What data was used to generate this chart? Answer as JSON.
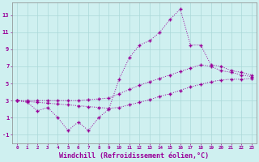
{
  "background_color": "#cff0f0",
  "grid_color": "#aad8d8",
  "line_color": "#990099",
  "marker": "+",
  "xlabel": "Windchill (Refroidissement éolien,°C)",
  "xlabel_fontsize": 6,
  "ylabel_ticks": [
    -1,
    1,
    3,
    5,
    7,
    9,
    11,
    13
  ],
  "xlim": [
    -0.5,
    23.5
  ],
  "ylim": [
    -2.0,
    14.5
  ],
  "series1_x": [
    0,
    1,
    2,
    3,
    4,
    5,
    6,
    7,
    8,
    9,
    10,
    11,
    12,
    13,
    14,
    15,
    16,
    17,
    18,
    19,
    20,
    21,
    22,
    23
  ],
  "series1_y": [
    3.0,
    2.9,
    2.8,
    2.7,
    2.6,
    2.5,
    2.4,
    2.3,
    2.2,
    2.1,
    2.2,
    2.5,
    2.8,
    3.1,
    3.5,
    3.8,
    4.2,
    4.6,
    4.9,
    5.2,
    5.4,
    5.5,
    5.5,
    5.6
  ],
  "series2_x": [
    0,
    1,
    2,
    3,
    4,
    5,
    6,
    7,
    8,
    9,
    10,
    11,
    12,
    13,
    14,
    15,
    16,
    17,
    18,
    19,
    20,
    21,
    22,
    23
  ],
  "series2_y": [
    3.0,
    2.8,
    1.8,
    2.2,
    1.0,
    -0.5,
    0.5,
    -0.5,
    1.0,
    2.0,
    5.5,
    8.0,
    9.5,
    10.0,
    11.0,
    12.5,
    13.7,
    9.5,
    9.5,
    7.2,
    7.0,
    6.5,
    6.3,
    6.0
  ],
  "series3_x": [
    0,
    1,
    2,
    3,
    4,
    5,
    6,
    7,
    8,
    9,
    10,
    11,
    12,
    13,
    14,
    15,
    16,
    17,
    18,
    19,
    20,
    21,
    22,
    23
  ],
  "series3_y": [
    3.0,
    3.0,
    3.0,
    3.0,
    3.0,
    3.0,
    3.0,
    3.1,
    3.2,
    3.3,
    3.8,
    4.3,
    4.8,
    5.2,
    5.6,
    6.0,
    6.4,
    6.8,
    7.2,
    7.0,
    6.5,
    6.3,
    6.0,
    5.8
  ]
}
